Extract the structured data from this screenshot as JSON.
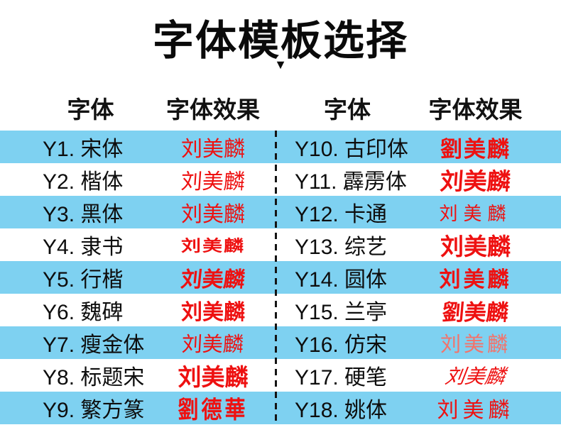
{
  "title": "字体模板选择",
  "caret_icon": "▼",
  "colors": {
    "stripe_blue": "#7ed1f1",
    "red": "#ee1111",
    "red_light": "#f3736b",
    "ink": "#111111"
  },
  "headers": {
    "font": "字体",
    "effect": "字体效果"
  },
  "left_rows": [
    {
      "label": "Y1. 宋体",
      "effect": "刘美麟"
    },
    {
      "label": "Y2. 楷体",
      "effect": "刘美麟"
    },
    {
      "label": "Y3. 黑体",
      "effect": "刘美麟"
    },
    {
      "label": "Y4. 隶书",
      "effect": "刘美麟"
    },
    {
      "label": "Y5. 行楷",
      "effect": "刘美麟"
    },
    {
      "label": "Y6. 魏碑",
      "effect": "刘美麟"
    },
    {
      "label": "Y7. 瘦金体",
      "effect": "刘美麟"
    },
    {
      "label": "Y8. 标题宋",
      "effect": "刘美麟"
    },
    {
      "label": "Y9. 繁方篆",
      "effect": "劉德華"
    }
  ],
  "right_rows": [
    {
      "label": "Y10. 古印体",
      "effect": "劉美麟"
    },
    {
      "label": "Y11. 霹雳体",
      "effect": "刘美麟"
    },
    {
      "label": "Y12. 卡通",
      "effect": "刘美麟"
    },
    {
      "label": "Y13. 综艺",
      "effect": "刘美麟"
    },
    {
      "label": "Y14. 圆体",
      "effect": "刘美麟"
    },
    {
      "label": "Y15. 兰亭",
      "effect": "劉美麟"
    },
    {
      "label": "Y16. 仿宋",
      "effect": "刘美麟"
    },
    {
      "label": "Y17. 硬笔",
      "effect": "刘美麟"
    },
    {
      "label": "Y18. 姚体",
      "effect": "刘美麟"
    }
  ]
}
